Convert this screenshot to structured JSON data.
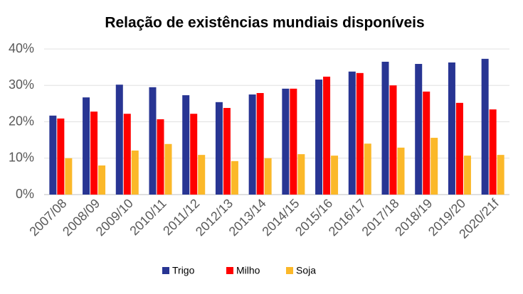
{
  "chart_data": {
    "type": "bar",
    "title": "Relação de existências mundiais disponíveis",
    "categories": [
      "2007/08",
      "2008/09",
      "2009/10",
      "2010/11",
      "2011/12",
      "2012/13",
      "2013/14",
      "2014/15",
      "2015/16",
      "2016/17",
      "2017/18",
      "2018/19",
      "2019/20",
      "2020/21f"
    ],
    "series": [
      {
        "name": "Trigo",
        "color": "#283593",
        "values": [
          21.7,
          26.7,
          30.2,
          29.5,
          27.3,
          25.4,
          27.5,
          29.1,
          31.6,
          33.8,
          36.5,
          35.9,
          36.3,
          37.3
        ]
      },
      {
        "name": "Milho",
        "color": "#ff0000",
        "values": [
          20.9,
          22.8,
          22.2,
          20.7,
          22.2,
          23.8,
          27.9,
          29.1,
          32.4,
          33.4,
          30.0,
          28.3,
          25.2,
          23.4
        ]
      },
      {
        "name": "Soja",
        "color": "#fbb829",
        "values": [
          10.0,
          8.0,
          12.1,
          13.9,
          10.9,
          9.2,
          10.0,
          11.1,
          10.7,
          14.0,
          12.9,
          15.6,
          10.7,
          10.9
        ]
      }
    ],
    "ylim": [
      0,
      40
    ],
    "yticks": [
      {
        "value": 0,
        "label": "0%"
      },
      {
        "value": 10,
        "label": "10%"
      },
      {
        "value": 20,
        "label": "20%"
      },
      {
        "value": 30,
        "label": "30%"
      },
      {
        "value": 40,
        "label": "40%"
      }
    ],
    "grid": true,
    "legend": "bottom"
  }
}
